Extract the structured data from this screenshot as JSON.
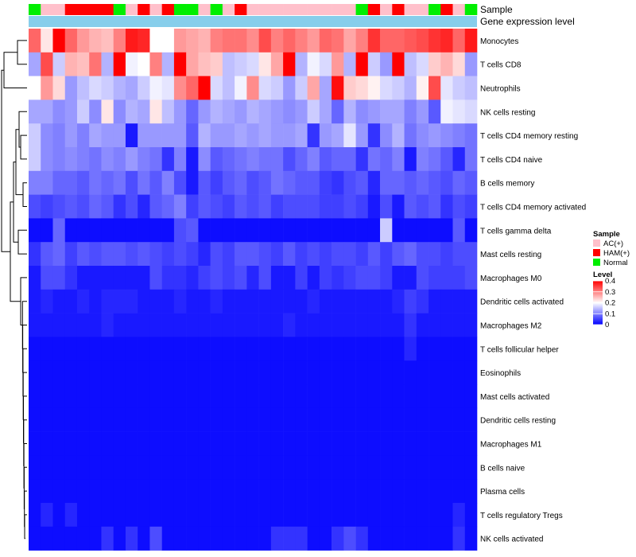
{
  "chart_data": {
    "type": "heatmap",
    "title": "",
    "annotation_tracks": [
      "Sample",
      "Gene expression level"
    ],
    "sample_groups": [
      "Normal",
      "AC(+)",
      "AC(+)",
      "HAM(+)",
      "HAM(+)",
      "HAM(+)",
      "HAM(+)",
      "Normal",
      "AC(+)",
      "HAM(+)",
      "AC(+)",
      "HAM(+)",
      "Normal",
      "Normal",
      "AC(+)",
      "Normal",
      "AC(+)",
      "HAM(+)",
      "AC(+)",
      "AC(+)",
      "AC(+)",
      "AC(+)",
      "AC(+)",
      "AC(+)",
      "AC(+)",
      "AC(+)",
      "AC(+)",
      "Normal",
      "HAM(+)",
      "AC(+)",
      "HAM(+)",
      "AC(+)",
      "AC(+)",
      "Normal",
      "HAM(+)",
      "AC(+)",
      "Normal"
    ],
    "rows": [
      "Monocytes",
      "T cells CD8",
      "Neutrophils",
      "NK cells resting",
      "T cells CD4 memory resting",
      "T cells CD4 naive",
      "B cells memory",
      "T cells CD4 memory activated",
      "T cells gamma delta",
      "Mast cells resting",
      "Macrophages M0",
      "Dendritic cells activated",
      "Macrophages M2",
      "T cells follicular helper",
      "Eosinophils",
      "Mast cells activated",
      "Dendritic cells resting",
      "Macrophages M1",
      "B cells naive",
      "Plasma cells",
      "T cells regulatory  Tregs",
      "NK cells activated"
    ],
    "values": [
      [
        0.32,
        0.22,
        0.4,
        0.32,
        0.28,
        0.26,
        0.25,
        0.3,
        0.38,
        0.37,
        0.2,
        0.2,
        0.28,
        0.27,
        0.26,
        0.3,
        0.31,
        0.31,
        0.29,
        0.34,
        0.3,
        0.32,
        0.3,
        0.28,
        0.32,
        0.31,
        0.27,
        0.3,
        0.36,
        0.32,
        0.32,
        0.33,
        0.34,
        0.36,
        0.37,
        0.32,
        0.38
      ],
      [
        0.13,
        0.34,
        0.16,
        0.26,
        0.25,
        0.31,
        0.14,
        0.4,
        0.19,
        0.2,
        0.3,
        0.14,
        0.4,
        0.27,
        0.25,
        0.24,
        0.15,
        0.16,
        0.17,
        0.22,
        0.27,
        0.4,
        0.14,
        0.19,
        0.17,
        0.28,
        0.14,
        0.4,
        0.16,
        0.12,
        0.4,
        0.15,
        0.17,
        0.24,
        0.26,
        0.23,
        0.12
      ],
      [
        0.2,
        0.28,
        0.23,
        0.12,
        0.15,
        0.17,
        0.16,
        0.14,
        0.13,
        0.16,
        0.19,
        0.18,
        0.29,
        0.32,
        0.4,
        0.17,
        0.15,
        0.19,
        0.29,
        0.17,
        0.16,
        0.12,
        0.16,
        0.27,
        0.13,
        0.39,
        0.24,
        0.23,
        0.21,
        0.17,
        0.16,
        0.14,
        0.21,
        0.34,
        0.18,
        0.16,
        0.15
      ],
      [
        0.13,
        0.13,
        0.11,
        0.12,
        0.16,
        0.11,
        0.22,
        0.11,
        0.14,
        0.13,
        0.22,
        0.15,
        0.12,
        0.08,
        0.12,
        0.14,
        0.13,
        0.12,
        0.14,
        0.13,
        0.12,
        0.11,
        0.12,
        0.16,
        0.13,
        0.08,
        0.14,
        0.11,
        0.12,
        0.13,
        0.13,
        0.1,
        0.12,
        0.07,
        0.19,
        0.18,
        0.17
      ],
      [
        0.16,
        0.11,
        0.1,
        0.12,
        0.1,
        0.13,
        0.12,
        0.12,
        0.02,
        0.12,
        0.12,
        0.12,
        0.12,
        0.07,
        0.14,
        0.12,
        0.12,
        0.13,
        0.12,
        0.13,
        0.12,
        0.12,
        0.13,
        0.04,
        0.12,
        0.13,
        0.18,
        0.12,
        0.04,
        0.11,
        0.14,
        0.09,
        0.11,
        0.12,
        0.11,
        0.1,
        0.09
      ],
      [
        0.16,
        0.11,
        0.1,
        0.11,
        0.1,
        0.09,
        0.11,
        0.1,
        0.12,
        0.1,
        0.09,
        0.04,
        0.1,
        0.02,
        0.11,
        0.07,
        0.08,
        0.09,
        0.1,
        0.09,
        0.09,
        0.06,
        0.08,
        0.1,
        0.07,
        0.08,
        0.08,
        0.04,
        0.09,
        0.08,
        0.1,
        0.02,
        0.1,
        0.09,
        0.07,
        0.03,
        0.09
      ],
      [
        0.1,
        0.1,
        0.08,
        0.08,
        0.07,
        0.09,
        0.08,
        0.09,
        0.06,
        0.09,
        0.07,
        0.1,
        0.06,
        0.02,
        0.07,
        0.05,
        0.07,
        0.08,
        0.06,
        0.07,
        0.09,
        0.08,
        0.07,
        0.07,
        0.05,
        0.04,
        0.06,
        0.07,
        0.03,
        0.08,
        0.08,
        0.07,
        0.08,
        0.07,
        0.06,
        0.08,
        0.07
      ],
      [
        0.06,
        0.05,
        0.06,
        0.07,
        0.06,
        0.08,
        0.07,
        0.04,
        0.06,
        0.03,
        0.07,
        0.08,
        0.1,
        0.05,
        0.07,
        0.06,
        0.05,
        0.07,
        0.06,
        0.07,
        0.05,
        0.06,
        0.06,
        0.06,
        0.05,
        0.05,
        0.06,
        0.05,
        0.02,
        0.06,
        0.02,
        0.07,
        0.06,
        0.07,
        0.04,
        0.06,
        0.05
      ],
      [
        0.01,
        0.01,
        0.08,
        0.01,
        0.01,
        0.01,
        0.01,
        0.01,
        0.01,
        0.01,
        0.01,
        0.01,
        0.06,
        0.07,
        0.01,
        0.01,
        0.01,
        0.01,
        0.01,
        0.01,
        0.01,
        0.01,
        0.01,
        0.01,
        0.01,
        0.01,
        0.01,
        0.01,
        0.01,
        0.16,
        0.01,
        0.01,
        0.01,
        0.01,
        0.01,
        0.07,
        0.01
      ],
      [
        0.04,
        0.07,
        0.08,
        0.05,
        0.07,
        0.06,
        0.07,
        0.07,
        0.06,
        0.07,
        0.06,
        0.05,
        0.06,
        0.05,
        0.03,
        0.06,
        0.05,
        0.07,
        0.07,
        0.06,
        0.05,
        0.07,
        0.05,
        0.06,
        0.05,
        0.06,
        0.06,
        0.05,
        0.07,
        0.05,
        0.07,
        0.08,
        0.06,
        0.06,
        0.05,
        0.06,
        0.06
      ],
      [
        0.02,
        0.06,
        0.06,
        0.04,
        0.02,
        0.02,
        0.02,
        0.02,
        0.02,
        0.02,
        0.06,
        0.04,
        0.04,
        0.03,
        0.05,
        0.06,
        0.05,
        0.06,
        0.03,
        0.06,
        0.02,
        0.02,
        0.05,
        0.02,
        0.05,
        0.04,
        0.05,
        0.06,
        0.06,
        0.05,
        0.02,
        0.02,
        0.06,
        0.05,
        0.05,
        0.05,
        0.06
      ],
      [
        0.02,
        0.03,
        0.02,
        0.02,
        0.03,
        0.02,
        0.03,
        0.03,
        0.03,
        0.02,
        0.02,
        0.02,
        0.03,
        0.02,
        0.02,
        0.03,
        0.02,
        0.02,
        0.02,
        0.02,
        0.02,
        0.02,
        0.02,
        0.03,
        0.02,
        0.02,
        0.02,
        0.02,
        0.02,
        0.02,
        0.03,
        0.05,
        0.04,
        0.02,
        0.02,
        0.02,
        0.02
      ],
      [
        0.02,
        0.02,
        0.02,
        0.02,
        0.02,
        0.02,
        0.03,
        0.02,
        0.02,
        0.02,
        0.02,
        0.02,
        0.02,
        0.02,
        0.02,
        0.02,
        0.02,
        0.02,
        0.02,
        0.02,
        0.02,
        0.03,
        0.02,
        0.02,
        0.02,
        0.02,
        0.02,
        0.02,
        0.02,
        0.02,
        0.02,
        0.04,
        0.02,
        0.02,
        0.02,
        0.02,
        0.02
      ],
      [
        0.01,
        0.01,
        0.01,
        0.01,
        0.01,
        0.01,
        0.01,
        0.01,
        0.01,
        0.01,
        0.01,
        0.01,
        0.01,
        0.01,
        0.01,
        0.01,
        0.01,
        0.01,
        0.01,
        0.01,
        0.01,
        0.01,
        0.01,
        0.01,
        0.01,
        0.01,
        0.01,
        0.01,
        0.01,
        0.01,
        0.01,
        0.03,
        0.01,
        0.01,
        0.01,
        0.01,
        0.01
      ],
      [
        0.01,
        0.01,
        0.01,
        0.01,
        0.01,
        0.01,
        0.01,
        0.01,
        0.01,
        0.01,
        0.01,
        0.01,
        0.01,
        0.01,
        0.01,
        0.01,
        0.01,
        0.01,
        0.01,
        0.01,
        0.01,
        0.01,
        0.01,
        0.01,
        0.01,
        0.01,
        0.01,
        0.01,
        0.01,
        0.01,
        0.01,
        0.01,
        0.01,
        0.01,
        0.01,
        0.01,
        0.01
      ],
      [
        0.01,
        0.01,
        0.01,
        0.01,
        0.01,
        0.01,
        0.01,
        0.01,
        0.01,
        0.01,
        0.01,
        0.01,
        0.01,
        0.01,
        0.01,
        0.01,
        0.01,
        0.01,
        0.01,
        0.01,
        0.01,
        0.01,
        0.01,
        0.01,
        0.01,
        0.01,
        0.01,
        0.01,
        0.01,
        0.01,
        0.01,
        0.01,
        0.01,
        0.01,
        0.01,
        0.01,
        0.01
      ],
      [
        0.01,
        0.01,
        0.01,
        0.01,
        0.01,
        0.01,
        0.01,
        0.01,
        0.01,
        0.01,
        0.01,
        0.01,
        0.01,
        0.01,
        0.01,
        0.01,
        0.01,
        0.01,
        0.01,
        0.01,
        0.01,
        0.01,
        0.01,
        0.01,
        0.01,
        0.01,
        0.01,
        0.01,
        0.01,
        0.01,
        0.01,
        0.01,
        0.01,
        0.01,
        0.01,
        0.01,
        0.01
      ],
      [
        0.01,
        0.01,
        0.01,
        0.01,
        0.01,
        0.01,
        0.01,
        0.01,
        0.01,
        0.01,
        0.01,
        0.01,
        0.01,
        0.01,
        0.01,
        0.01,
        0.01,
        0.01,
        0.01,
        0.01,
        0.01,
        0.01,
        0.01,
        0.01,
        0.01,
        0.01,
        0.01,
        0.01,
        0.01,
        0.01,
        0.01,
        0.01,
        0.01,
        0.01,
        0.01,
        0.01,
        0.01
      ],
      [
        0.01,
        0.01,
        0.01,
        0.01,
        0.01,
        0.01,
        0.01,
        0.01,
        0.01,
        0.01,
        0.01,
        0.01,
        0.01,
        0.01,
        0.01,
        0.01,
        0.01,
        0.01,
        0.01,
        0.01,
        0.01,
        0.01,
        0.01,
        0.01,
        0.01,
        0.01,
        0.01,
        0.01,
        0.01,
        0.01,
        0.01,
        0.01,
        0.01,
        0.01,
        0.01,
        0.01,
        0.01
      ],
      [
        0.01,
        0.01,
        0.01,
        0.01,
        0.01,
        0.01,
        0.01,
        0.01,
        0.01,
        0.01,
        0.01,
        0.01,
        0.01,
        0.01,
        0.01,
        0.01,
        0.01,
        0.01,
        0.01,
        0.01,
        0.01,
        0.01,
        0.01,
        0.01,
        0.01,
        0.01,
        0.01,
        0.01,
        0.01,
        0.01,
        0.01,
        0.01,
        0.01,
        0.01,
        0.01,
        0.01,
        0.01
      ],
      [
        0.01,
        0.03,
        0.01,
        0.03,
        0.01,
        0.01,
        0.01,
        0.01,
        0.01,
        0.01,
        0.01,
        0.01,
        0.01,
        0.01,
        0.01,
        0.01,
        0.01,
        0.01,
        0.01,
        0.01,
        0.01,
        0.01,
        0.01,
        0.01,
        0.01,
        0.01,
        0.01,
        0.01,
        0.01,
        0.01,
        0.01,
        0.01,
        0.01,
        0.01,
        0.01,
        0.03,
        0.01
      ],
      [
        0.01,
        0.01,
        0.01,
        0.01,
        0.01,
        0.01,
        0.04,
        0.01,
        0.04,
        0.01,
        0.06,
        0.01,
        0.01,
        0.01,
        0.01,
        0.01,
        0.01,
        0.01,
        0.01,
        0.01,
        0.04,
        0.04,
        0.04,
        0.01,
        0.01,
        0.04,
        0.06,
        0.04,
        0.01,
        0.01,
        0.01,
        0.01,
        0.01,
        0.01,
        0.01,
        0.04,
        0.01
      ]
    ],
    "legend": {
      "sample_title": "Sample",
      "sample_items": [
        {
          "label": "AC(+)",
          "color": "#FFC0CB"
        },
        {
          "label": "HAM(+)",
          "color": "#FF0000"
        },
        {
          "label": "Normal",
          "color": "#00EE00"
        }
      ],
      "level_title": "Level",
      "level_ticks": [
        "0.4",
        "0.3",
        "0.2",
        "0.1",
        "0"
      ],
      "level_range": [
        0,
        0.4
      ]
    },
    "colors": {
      "low": "#0000FF",
      "mid": "#FFFFFF",
      "high": "#FF0000",
      "expression_track": "#87CEEB"
    }
  }
}
